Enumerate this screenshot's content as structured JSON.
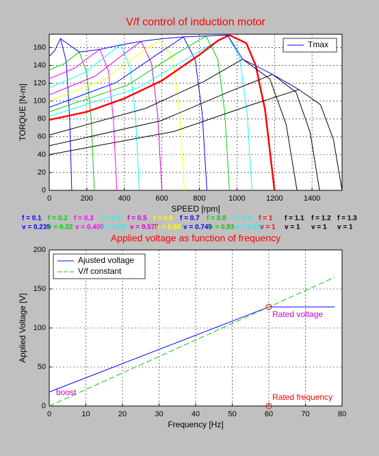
{
  "chart_data": [
    {
      "type": "line",
      "title": "V/f control of induction motor",
      "title_color": "#ff0000",
      "x_label": "SPEED [rpm]",
      "y_label": "TORQUE [N-m]",
      "xlim": [
        0,
        1560
      ],
      "ylim": [
        0,
        175
      ],
      "xticks": [
        0,
        200,
        400,
        600,
        800,
        1000,
        1200,
        1400
      ],
      "yticks": [
        0,
        20,
        40,
        60,
        80,
        100,
        120,
        140,
        160
      ],
      "grid": true,
      "legend": "upper right",
      "series": [
        {
          "color": "#0000ff",
          "x": [
            0,
            30,
            48,
            60,
            90,
            108,
            120
          ],
          "values": [
            150,
            157,
            165,
            170,
            145,
            85,
            0
          ]
        },
        {
          "color": "#00cc00",
          "x": [
            0,
            80,
            128,
            160,
            200,
            224,
            240
          ],
          "values": [
            135,
            142,
            150,
            155,
            132,
            78,
            0
          ]
        },
        {
          "color": "#ff00ff",
          "x": [
            0,
            135,
            216,
            270,
            315,
            342,
            360
          ],
          "values": [
            125,
            137,
            150,
            158,
            134,
            79,
            0
          ]
        },
        {
          "color": "#00ffff",
          "x": [
            0,
            190,
            304,
            380,
            430,
            460,
            480
          ],
          "values": [
            115,
            132,
            151,
            163,
            139,
            82,
            0
          ]
        },
        {
          "color": "#cc00cc",
          "x": [
            0,
            245,
            392,
            490,
            545,
            578,
            600
          ],
          "values": [
            107,
            128,
            152,
            167,
            142,
            84,
            0
          ]
        },
        {
          "color": "#ffff00",
          "x": [
            0,
            300,
            480,
            600,
            660,
            696,
            720
          ],
          "values": [
            100,
            125,
            153,
            170,
            145,
            85,
            0
          ]
        },
        {
          "color": "#0000ff",
          "x": [
            0,
            358,
            572,
            715,
            778,
            815,
            840
          ],
          "values": [
            93,
            121,
            152,
            172,
            146,
            86,
            0
          ]
        },
        {
          "color": "#00cc00",
          "x": [
            0,
            418,
            668,
            835,
            898,
            935,
            960
          ],
          "values": [
            88,
            118,
            152,
            173,
            147,
            87,
            0
          ]
        },
        {
          "color": "#00ffff",
          "x": [
            0,
            475,
            760,
            950,
            1015,
            1054,
            1080
          ],
          "values": [
            83,
            115,
            151,
            174,
            148,
            87,
            0
          ]
        },
        {
          "color": "#ff0000",
          "width": 2.5,
          "x": [
            0,
            200,
            400,
            600,
            800,
            900,
            960,
            1050,
            1100,
            1150,
            1200
          ],
          "values": [
            79,
            88,
            103,
            123,
            152,
            168,
            174,
            165,
            140,
            90,
            0
          ]
        },
        {
          "color": "#000000",
          "x": [
            0,
            515,
            824,
            1030,
            1175,
            1262,
            1320
          ],
          "values": [
            62,
            92,
            122,
            147,
            125,
            74,
            0
          ]
        },
        {
          "color": "#000000",
          "x": [
            0,
            595,
            952,
            1190,
            1315,
            1390,
            1440
          ],
          "values": [
            50,
            78,
            110,
            130,
            110,
            65,
            0
          ]
        },
        {
          "color": "#000000",
          "x": [
            0,
            665,
            1064,
            1330,
            1445,
            1514,
            1560
          ],
          "values": [
            40,
            66,
            95,
            113,
            96,
            57,
            0
          ]
        },
        {
          "name": "Tmax",
          "color": "#0000ff",
          "x": [
            60,
            160,
            270,
            380,
            490,
            600,
            715,
            835,
            950,
            1030,
            1190,
            1330
          ],
          "values": [
            170,
            155,
            158,
            163,
            167,
            170,
            172,
            173,
            174,
            147,
            130,
            113
          ]
        }
      ],
      "annotations": [
        {
          "text": "f = 0.1",
          "color": "#0000ff"
        },
        {
          "text": "f = 0.2",
          "color": "#00cc00"
        },
        {
          "text": "f = 0.3",
          "color": "#ff00ff"
        },
        {
          "text": "f = 0.4",
          "color": "#00ffff"
        },
        {
          "text": "f = 0.5",
          "color": "#cc00cc"
        },
        {
          "text": "f = 0.6",
          "color": "#ffff00"
        },
        {
          "text": "f = 0.7",
          "color": "#0000ff"
        },
        {
          "text": "f = 0.8",
          "color": "#00cc00"
        },
        {
          "text": "f = 0.9",
          "color": "#00ffff"
        },
        {
          "text": "f = 1",
          "color": "#ff0000"
        },
        {
          "text": "f = 1.1",
          "color": "#000000"
        },
        {
          "text": "f = 1.2",
          "color": "#000000"
        },
        {
          "text": "f = 1.3",
          "color": "#000000"
        },
        {
          "text": "v = 0.235",
          "color": "#0000ff"
        },
        {
          "text": "v = 0.32",
          "color": "#00cc00"
        },
        {
          "text": "v = 0.405",
          "color": "#ff00ff"
        },
        {
          "text": "v = 0.49",
          "color": "#00ffff"
        },
        {
          "text": "v = 0.575",
          "color": "#cc00cc"
        },
        {
          "text": "v = 0.66",
          "color": "#ffff00"
        },
        {
          "text": "v = 0.745",
          "color": "#0000ff"
        },
        {
          "text": "v = 0.83",
          "color": "#00cc00"
        },
        {
          "text": "v = 0.915",
          "color": "#00ffff"
        },
        {
          "text": "v = 1",
          "color": "#ff0000"
        },
        {
          "text": "v = 1",
          "color": "#000000"
        },
        {
          "text": "v = 1",
          "color": "#000000"
        },
        {
          "text": "v = 1",
          "color": "#000000"
        }
      ]
    },
    {
      "type": "line",
      "title": "Applied voltage as function of frequency",
      "title_color": "#ff0000",
      "x_label": "Frequency [Hz]",
      "y_label": "Applied Voltage [V]",
      "xlim": [
        0,
        80
      ],
      "ylim": [
        0,
        200
      ],
      "xticks": [
        0,
        10,
        20,
        30,
        40,
        50,
        60,
        70,
        80
      ],
      "yticks": [
        0,
        50,
        100,
        150,
        200
      ],
      "grid": true,
      "legend": "upper left",
      "series": [
        {
          "name": "Ajusted voltage",
          "color": "#0000ff",
          "x": [
            0,
            60,
            78
          ],
          "values": [
            18,
            127,
            127
          ]
        },
        {
          "name": "V/f constant",
          "color": "#00cc00",
          "dash": true,
          "x": [
            0,
            78
          ],
          "values": [
            0,
            165
          ]
        }
      ],
      "markers": {
        "color": "#ff0000",
        "x": [
          60,
          60
        ],
        "values": [
          127,
          0
        ]
      },
      "annotations": [
        {
          "text": "boost",
          "color": "#cc00cc"
        },
        {
          "text": "Rated voltage",
          "color": "#cc00cc"
        },
        {
          "text": "Rated frequency",
          "color": "#ff0000"
        }
      ]
    }
  ]
}
